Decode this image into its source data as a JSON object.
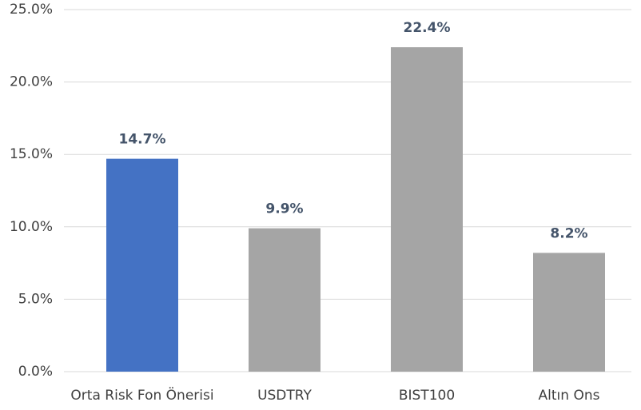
{
  "chart_data": {
    "type": "bar",
    "categories": [
      "Orta Risk Fon Önerisi",
      "USDTRY",
      "BIST100",
      "Altın Ons"
    ],
    "values": [
      14.7,
      9.9,
      22.4,
      8.2
    ],
    "value_labels": [
      "14.7%",
      "9.9%",
      "22.4%",
      "8.2%"
    ],
    "colors": [
      "#4472c4",
      "#a5a5a5",
      "#a5a5a5",
      "#a5a5a5"
    ],
    "ylim": [
      0,
      25
    ],
    "yticks": [
      {
        "value": 0,
        "label": "0.0%"
      },
      {
        "value": 5,
        "label": "5.0%"
      },
      {
        "value": 10,
        "label": "10.0%"
      },
      {
        "value": 15,
        "label": "15.0%"
      },
      {
        "value": 20,
        "label": "20.0%"
      },
      {
        "value": 25,
        "label": "25.0%"
      }
    ],
    "grid": true
  }
}
